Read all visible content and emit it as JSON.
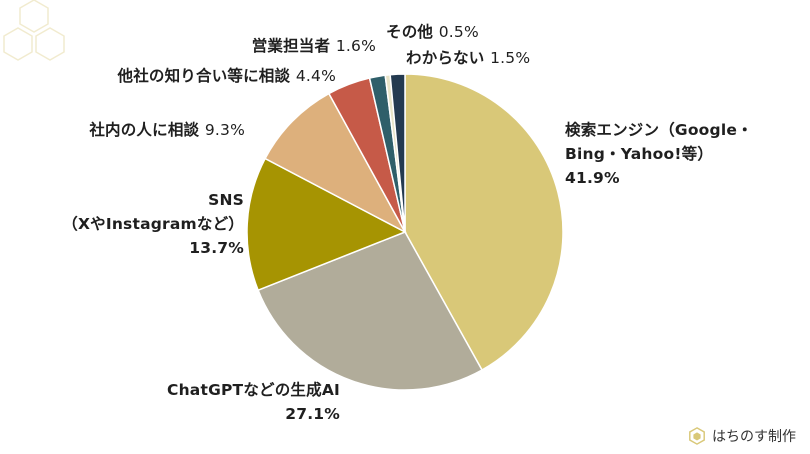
{
  "chart_data": {
    "type": "pie",
    "start": "12 o'clock",
    "direction": "clockwise",
    "slices": [
      {
        "label": [
          "検索エンジン（Google・",
          "Bing・Yahoo!等）"
        ],
        "value": 41.9,
        "value_text": "41.9%",
        "color": "#d9c878"
      },
      {
        "label": [
          "ChatGPTなどの生成AI"
        ],
        "value": 27.1,
        "value_text": "27.1%",
        "color": "#b1ac9a"
      },
      {
        "label": [
          "SNS",
          "（XやInstagramなど）"
        ],
        "value": 13.7,
        "value_text": "13.7%",
        "color": "#a69402"
      },
      {
        "label": [
          "社内の人に相談"
        ],
        "value": 9.3,
        "value_text": "9.3%",
        "color": "#ddb07c"
      },
      {
        "label": [
          "他社の知り合い等に相談"
        ],
        "value": 4.4,
        "value_text": "4.4%",
        "color": "#c65a48"
      },
      {
        "label": [
          "営業担当者"
        ],
        "value": 1.6,
        "value_text": "1.6%",
        "color": "#2f5f6a"
      },
      {
        "label": [
          "その他"
        ],
        "value": 0.5,
        "value_text": "0.5%",
        "color": "#e8e4c8"
      },
      {
        "label": [
          "わからない"
        ],
        "value": 1.5,
        "value_text": "1.5%",
        "color": "#243a50"
      }
    ]
  },
  "brand": {
    "text": "はちのす制作",
    "icon": "honeycomb-icon",
    "accent": "#d9c878"
  }
}
